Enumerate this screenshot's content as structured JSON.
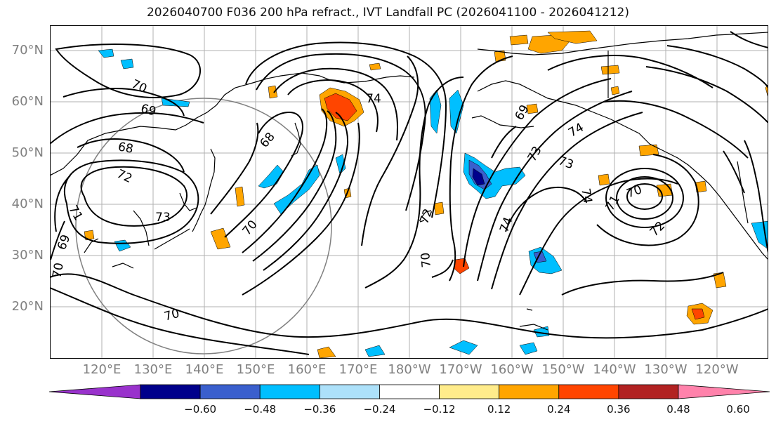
{
  "title": "2026040700 F036 200 hPa refract., IVT Landfall PC (2026041100 - 2026041212)",
  "lat_labels": [
    "70°N",
    "60°N",
    "50°N",
    "40°N",
    "30°N",
    "20°N"
  ],
  "lon_labels": [
    "120°E",
    "130°E",
    "140°E",
    "150°E",
    "160°E",
    "170°E",
    "180°W",
    "170°W",
    "160°W",
    "150°W",
    "140°W",
    "130°W",
    "120°W"
  ],
  "contour_labels": [
    "70",
    "69",
    "68",
    "72",
    "71",
    "69",
    "70",
    "73",
    "68",
    "74",
    "70",
    "72",
    "70",
    "69",
    "74",
    "73",
    "73",
    "74",
    "74",
    "70",
    "71",
    "72",
    "70"
  ],
  "colorbar": {
    "ticks": [
      "−0.60",
      "−0.48",
      "−0.36",
      "−0.24",
      "−0.12",
      "0.12",
      "0.24",
      "0.36",
      "0.48",
      "0.60"
    ],
    "colors": [
      "#9932CC",
      "#00008B",
      "#3A5FCD",
      "#00BFFF",
      "#ADE1FA",
      "#FFFFFF",
      "#FFEC8B",
      "#FFA500",
      "#FF4500",
      "#B22222",
      "#FF82AB"
    ]
  }
}
